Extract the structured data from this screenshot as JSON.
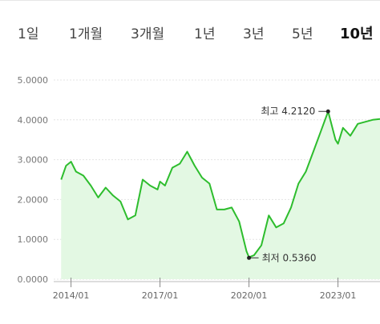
{
  "tabs": [
    {
      "label": "1일",
      "active": false
    },
    {
      "label": "1개월",
      "active": false
    },
    {
      "label": "3개월",
      "active": false
    },
    {
      "label": "1년",
      "active": false
    },
    {
      "label": "3년",
      "active": false
    },
    {
      "label": "5년",
      "active": false
    },
    {
      "label": "10년",
      "active": true
    }
  ],
  "chart_data": {
    "type": "area",
    "title": "",
    "xlabel": "",
    "ylabel": "",
    "ylim": [
      0,
      5
    ],
    "y_ticks": [
      "0.0000",
      "1.0000",
      "2.0000",
      "3.0000",
      "4.0000",
      "5.0000"
    ],
    "x_ticks": [
      "2014/01",
      "2017/01",
      "2020/01",
      "2023/01"
    ],
    "grid": true,
    "line_color": "#2dbd2d",
    "fill_color": "#e3f8e3",
    "series": [
      {
        "x": [
          "2013/09",
          "2013/11",
          "2014/01",
          "2014/03",
          "2014/06",
          "2014/09",
          "2014/12",
          "2015/03",
          "2015/06",
          "2015/09",
          "2015/12",
          "2016/03",
          "2016/06",
          "2016/09",
          "2016/12",
          "2017/01",
          "2017/03",
          "2017/06",
          "2017/09",
          "2017/12",
          "2018/03",
          "2018/06",
          "2018/09",
          "2018/12",
          "2019/03",
          "2019/06",
          "2019/09",
          "2019/12",
          "2020/01",
          "2020/03",
          "2020/06",
          "2020/09",
          "2020/12",
          "2021/03",
          "2021/06",
          "2021/09",
          "2021/12",
          "2022/03",
          "2022/06",
          "2022/09",
          "2022/12",
          "2023/01",
          "2023/03",
          "2023/06",
          "2023/09",
          "2023/12",
          "2024/03",
          "2024/06"
        ],
        "values": [
          2.5,
          2.85,
          2.95,
          2.7,
          2.6,
          2.35,
          2.05,
          2.3,
          2.1,
          1.95,
          1.5,
          1.6,
          2.5,
          2.35,
          2.25,
          2.45,
          2.35,
          2.8,
          2.9,
          3.2,
          2.85,
          2.55,
          2.4,
          1.75,
          1.75,
          1.8,
          1.45,
          0.7,
          0.55,
          0.6,
          0.85,
          1.6,
          1.3,
          1.4,
          1.8,
          2.4,
          2.7,
          3.2,
          3.7,
          4.21,
          3.5,
          3.4,
          3.8,
          3.6,
          3.9,
          3.95,
          4.0,
          4.02
        ]
      }
    ],
    "annotations": [
      {
        "label": "최고",
        "value": "4.2120",
        "x": "2022/09",
        "y": 4.212
      },
      {
        "label": "최저",
        "value": "0.5360",
        "x": "2020/01",
        "y": 0.536
      }
    ]
  }
}
